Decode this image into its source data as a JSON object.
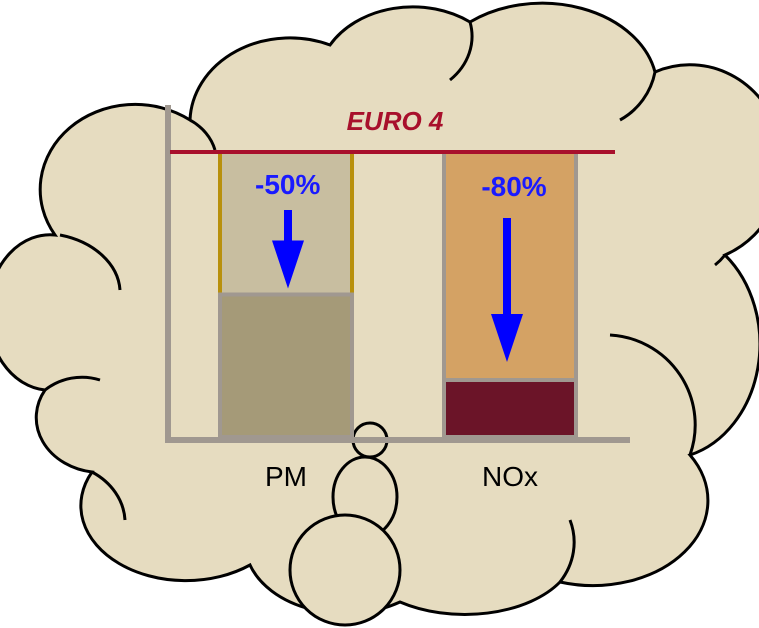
{
  "chart_data": {
    "type": "bar",
    "reference_label": "EURO 4",
    "categories": [
      "PM",
      "NOx"
    ],
    "values": [
      -50,
      -80
    ],
    "value_labels": [
      "-50%",
      "-80%"
    ],
    "colors": [
      "#a59a78",
      "#6b1428"
    ],
    "headroom_colors": [
      "#c8bea0",
      "#d4a264"
    ],
    "reference_color": "#a8102c"
  }
}
